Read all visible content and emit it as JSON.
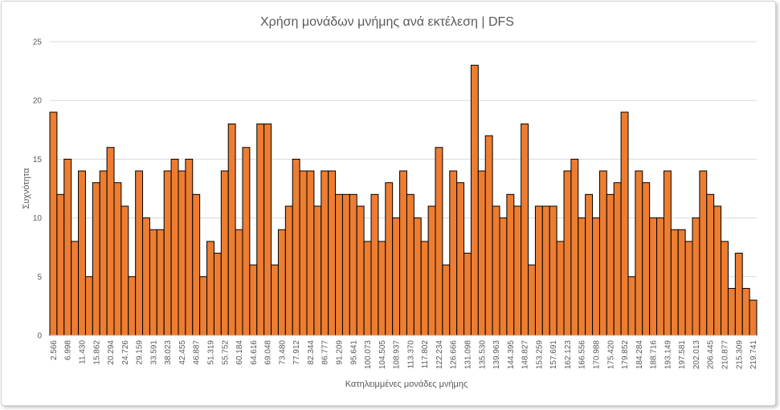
{
  "chart_data": {
    "type": "bar",
    "title": "Χρήση μονάδων μνήμης ανά εκτέλεση | DFS",
    "xlabel": "Κατηλειμμένες μονάδες μνήμης",
    "ylabel": "Συχνότητα",
    "ylim": [
      0,
      25
    ],
    "yticks": [
      0,
      5,
      10,
      15,
      20,
      25
    ],
    "grid": true,
    "bar_color": "#ED7D31",
    "bar_edge_color": "#000000",
    "x_tick_labels": [
      "2.566",
      "6.998",
      "11.430",
      "15.862",
      "20.294",
      "24.726",
      "29.159",
      "33.591",
      "38.023",
      "42.455",
      "46.887",
      "51.319",
      "55.752",
      "60.184",
      "64.616",
      "69.048",
      "73.480",
      "77.912",
      "82.344",
      "86.777",
      "91.209",
      "95.641",
      "100.073",
      "104.505",
      "108.937",
      "113.370",
      "117.802",
      "122.234",
      "126.666",
      "131.098",
      "135.530",
      "139.963",
      "144.395",
      "148.827",
      "153.259",
      "157.691",
      "162.123",
      "166.556",
      "170.988",
      "175.420",
      "179.852",
      "184.284",
      "188.716",
      "193.149",
      "197.581",
      "202.013",
      "206.445",
      "210.877",
      "215.309",
      "219.741"
    ],
    "values": [
      19,
      12,
      15,
      8,
      14,
      5,
      13,
      14,
      16,
      13,
      11,
      5,
      14,
      10,
      9,
      9,
      14,
      15,
      14,
      15,
      12,
      5,
      8,
      7,
      14,
      18,
      9,
      16,
      6,
      18,
      18,
      6,
      9,
      11,
      15,
      14,
      14,
      11,
      14,
      14,
      12,
      12,
      12,
      11,
      8,
      12,
      8,
      13,
      10,
      14,
      12,
      10,
      8,
      11,
      16,
      6,
      14,
      13,
      7,
      23,
      14,
      17,
      11,
      10,
      12,
      11,
      18,
      6,
      11,
      11,
      11,
      8,
      14,
      15,
      10,
      12,
      10,
      14,
      12,
      13,
      19,
      5,
      14,
      13,
      10,
      10,
      14,
      9,
      9,
      8,
      10,
      14,
      12,
      11,
      8,
      4,
      7,
      4,
      3
    ]
  }
}
